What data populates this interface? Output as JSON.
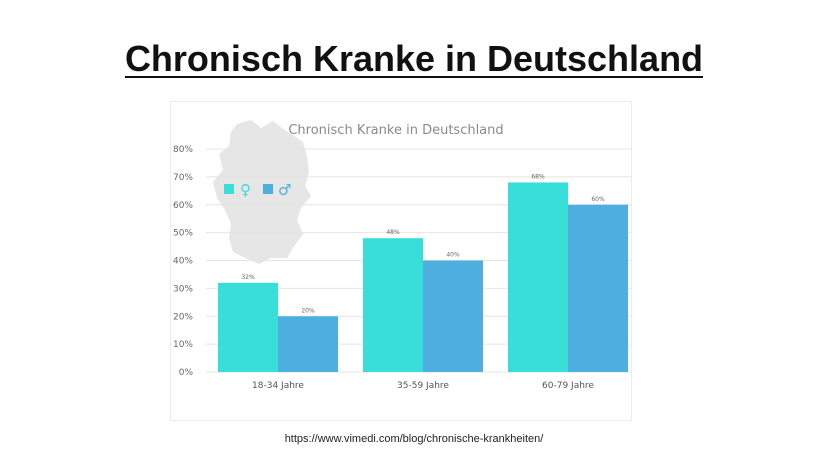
{
  "slide": {
    "title": "Chronisch Kranke in Deutschland",
    "source": "https://www.vimedi.com/blog/chronische-krankheiten/"
  },
  "legend": {
    "female_symbol": "♀",
    "male_symbol": "♂"
  },
  "colors": {
    "female": "#38DED8",
    "male": "#4FAEE0",
    "map": "#E6E6E6"
  },
  "chart_data": {
    "type": "bar",
    "title": "Chronisch Kranke in Deutschland",
    "categories": [
      "18-34 Jahre",
      "35-59 Jahre",
      "60-79 Jahre"
    ],
    "series": [
      {
        "color": "#38DED8",
        "values": [
          32,
          48,
          68
        ],
        "labels": [
          "32%",
          "48%",
          "68%"
        ]
      },
      {
        "color": "#4FAEE0",
        "values": [
          20,
          40,
          60
        ],
        "labels": [
          "20%",
          "40%",
          "60%"
        ]
      }
    ],
    "yticks": [
      "0%",
      "10%",
      "20%",
      "30%",
      "40%",
      "50%",
      "60%",
      "70%",
      "80%"
    ],
    "ylim": [
      0,
      80
    ],
    "grid": true,
    "legend": "top-left"
  }
}
